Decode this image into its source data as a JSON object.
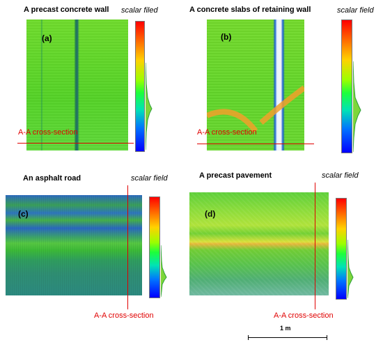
{
  "panels": {
    "a": {
      "title": "A precast concrete wall",
      "label": "(a)",
      "scalar_label": "scalar filed",
      "section_label": "A-A cross-section"
    },
    "b": {
      "title": "A concrete slabs of retaining wall",
      "label": "(b)",
      "scalar_label": "scalar field",
      "section_label": "A-A cross-section"
    },
    "c": {
      "title": "An asphalt road",
      "label": "(c)",
      "scalar_label": "scalar field",
      "section_label": "A-A cross-section"
    },
    "d": {
      "title": "A precast pavement",
      "label": "(d)",
      "scalar_label": "scalar field",
      "section_label": "A-A cross-section"
    }
  },
  "scale_bar": {
    "label": "1 m"
  },
  "colors": {
    "section_line": "#e00000",
    "scale_low": "#0000ff",
    "scale_high": "#ff0000"
  }
}
